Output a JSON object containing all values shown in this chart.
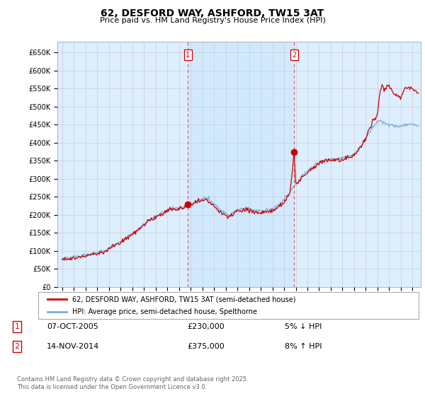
{
  "title": "62, DESFORD WAY, ASHFORD, TW15 3AT",
  "subtitle": "Price paid vs. HM Land Registry's House Price Index (HPI)",
  "ylabel_ticks": [
    "£0",
    "£50K",
    "£100K",
    "£150K",
    "£200K",
    "£250K",
    "£300K",
    "£350K",
    "£400K",
    "£450K",
    "£500K",
    "£550K",
    "£600K",
    "£650K"
  ],
  "ylim": [
    0,
    680000
  ],
  "yticks": [
    0,
    50000,
    100000,
    150000,
    200000,
    250000,
    300000,
    350000,
    400000,
    450000,
    500000,
    550000,
    600000,
    650000
  ],
  "marker1_date": 2005.77,
  "marker1_value": 230000,
  "marker2_date": 2014.87,
  "marker2_value": 375000,
  "legend_line1": "62, DESFORD WAY, ASHFORD, TW15 3AT (semi-detached house)",
  "legend_line2": "HPI: Average price, semi-detached house, Spelthorne",
  "line_color_red": "#cc0000",
  "line_color_blue": "#7aadd4",
  "marker_box_color": "#cc0000",
  "grid_color": "#cccccc",
  "background_plot": "#ddeeff",
  "background_highlight": "#cce0f5",
  "background_fig": "#ffffff",
  "footnote": "Contains HM Land Registry data © Crown copyright and database right 2025.\nThis data is licensed under the Open Government Licence v3.0."
}
